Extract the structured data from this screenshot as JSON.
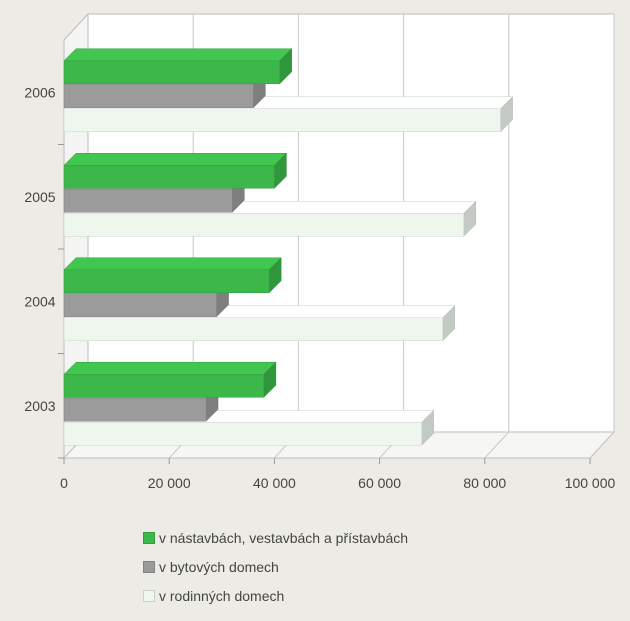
{
  "chart_data": {
    "type": "bar",
    "orientation": "horizontal",
    "style": "3d",
    "categories": [
      "2003",
      "2004",
      "2005",
      "2006"
    ],
    "series": [
      {
        "name": "v nástavbách, vestavbách a přístavbách",
        "values": [
          38000,
          39000,
          40000,
          41000
        ],
        "color": "#3cb84a"
      },
      {
        "name": "v bytových domech",
        "values": [
          27000,
          29000,
          32000,
          36000
        ],
        "color": "#9b9b9b"
      },
      {
        "name": "v rodinných domech",
        "values": [
          68000,
          72000,
          76000,
          83000
        ],
        "color": "#eef6ee"
      }
    ],
    "xlim": [
      0,
      100000
    ],
    "xticks": [
      "0",
      "20 000",
      "40 000",
      "60 000",
      "80 000",
      "100 000"
    ],
    "grid": true,
    "legend_position": "bottom"
  }
}
